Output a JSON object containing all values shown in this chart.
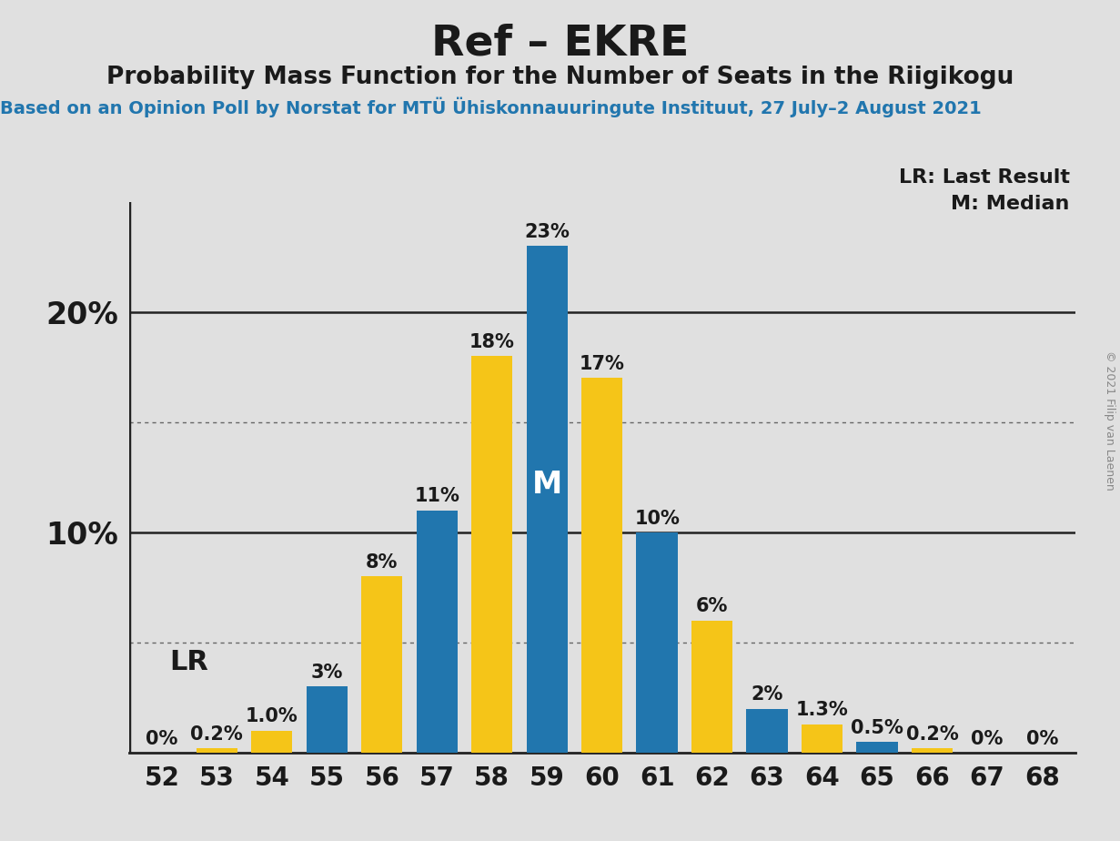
{
  "title": "Ref – EKRE",
  "subtitle": "Probability Mass Function for the Number of Seats in the Riigikogu",
  "source_line": "Based on an Opinion Poll by Norstat for MTÜ Ühiskonnauuringute Instituut, 27 July–2 August 2021",
  "copyright": "© 2021 Filip van Laenen",
  "legend_lr": "LR: Last Result",
  "legend_m": "M: Median",
  "seats": [
    52,
    53,
    54,
    55,
    56,
    57,
    58,
    59,
    60,
    61,
    62,
    63,
    64,
    65,
    66,
    67,
    68
  ],
  "values": [
    0.0,
    0.2,
    1.0,
    3.0,
    8.0,
    11.0,
    18.0,
    23.0,
    17.0,
    10.0,
    6.0,
    2.0,
    1.3,
    0.5,
    0.2,
    0.0,
    0.0
  ],
  "colors": [
    "#2176AE",
    "#F5C518",
    "#F5C518",
    "#2176AE",
    "#F5C518",
    "#2176AE",
    "#F5C518",
    "#2176AE",
    "#F5C518",
    "#2176AE",
    "#F5C518",
    "#2176AE",
    "#F5C518",
    "#2176AE",
    "#F5C518",
    "#2176AE",
    "#F5C518"
  ],
  "labels": [
    "0%",
    "0.2%",
    "1.0%",
    "3%",
    "8%",
    "11%",
    "18%",
    "23%",
    "17%",
    "10%",
    "6%",
    "2%",
    "1.3%",
    "0.5%",
    "0.2%",
    "0%",
    "0%"
  ],
  "lr_seat_idx": 1,
  "median_seat_idx": 7,
  "lr_annotation_idx": 2,
  "blue_color": "#2176AE",
  "yellow_color": "#F5C518",
  "bg_color": "#E0E0E0",
  "bar_width": 0.75,
  "ylim_max": 25,
  "title_fontsize": 34,
  "subtitle_fontsize": 19,
  "source_fontsize": 14,
  "bar_label_fontsize": 15,
  "tick_fontsize": 20,
  "ytick_label_fontsize": 24
}
